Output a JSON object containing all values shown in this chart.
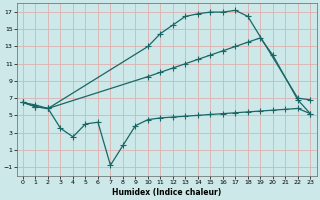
{
  "xlabel": "Humidex (Indice chaleur)",
  "xlim": [
    -0.5,
    23.5
  ],
  "ylim": [
    -2.0,
    18.0
  ],
  "yticks": [
    -1,
    1,
    3,
    5,
    7,
    9,
    11,
    13,
    15,
    17
  ],
  "xticks": [
    0,
    1,
    2,
    3,
    4,
    5,
    6,
    7,
    8,
    9,
    10,
    11,
    12,
    13,
    14,
    15,
    16,
    17,
    18,
    19,
    20,
    21,
    22,
    23
  ],
  "bg_color": "#cce8e8",
  "grid_color": "#ddb0b0",
  "line_color": "#1a6666",
  "curve1_x": [
    0,
    1,
    2,
    10,
    11,
    12,
    13,
    14,
    15,
    16,
    17,
    18,
    22,
    23
  ],
  "curve1_y": [
    6.5,
    6.2,
    5.8,
    13.0,
    14.5,
    15.5,
    16.5,
    16.8,
    17.0,
    17.0,
    17.2,
    16.5,
    7.0,
    6.8
  ],
  "curve2_x": [
    0,
    1,
    2,
    10,
    11,
    12,
    13,
    14,
    15,
    16,
    17,
    18,
    19,
    20,
    22,
    23
  ],
  "curve2_y": [
    6.5,
    6.0,
    5.8,
    9.5,
    10.0,
    10.5,
    11.0,
    11.5,
    12.0,
    12.5,
    13.0,
    13.5,
    14.0,
    12.0,
    6.8,
    5.2
  ],
  "curve3_x": [
    0,
    1,
    2,
    3,
    4,
    5,
    6,
    7,
    8,
    9,
    10,
    11,
    12,
    13,
    14,
    15,
    16,
    17,
    18,
    19,
    20,
    21,
    22,
    23
  ],
  "curve3_y": [
    6.5,
    6.0,
    5.8,
    3.5,
    2.5,
    4.0,
    4.2,
    -0.8,
    1.5,
    3.8,
    4.5,
    4.7,
    4.8,
    4.9,
    5.0,
    5.1,
    5.2,
    5.3,
    5.4,
    5.5,
    5.6,
    5.7,
    5.8,
    5.2
  ]
}
